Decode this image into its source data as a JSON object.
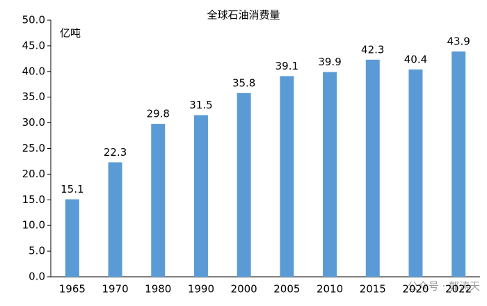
{
  "chart_data": {
    "type": "bar",
    "title": "全球石油消费量",
    "y_label": "亿吨",
    "categories": [
      "1965",
      "1970",
      "1980",
      "1990",
      "2000",
      "2005",
      "2010",
      "2015",
      "2020",
      "2022"
    ],
    "values": [
      15.1,
      22.3,
      29.8,
      31.5,
      35.8,
      39.1,
      39.9,
      42.3,
      40.4,
      43.9
    ],
    "color": "#5b9bd5",
    "ylim": [
      0,
      50
    ],
    "yticks": [
      {
        "value": 0,
        "label": "0.0"
      },
      {
        "value": 5,
        "label": "5.0"
      },
      {
        "value": 10,
        "label": "10.0"
      },
      {
        "value": 15,
        "label": "15.0"
      },
      {
        "value": 20,
        "label": "20.0"
      },
      {
        "value": 25,
        "label": "25.0"
      },
      {
        "value": 30,
        "label": "30.0"
      },
      {
        "value": 35,
        "label": "35.0"
      },
      {
        "value": 40,
        "label": "40.0"
      },
      {
        "value": 45,
        "label": "45.0"
      },
      {
        "value": 50,
        "label": "50.0"
      }
    ],
    "grid": false,
    "watermark": "公众号 · 郭涛天"
  }
}
